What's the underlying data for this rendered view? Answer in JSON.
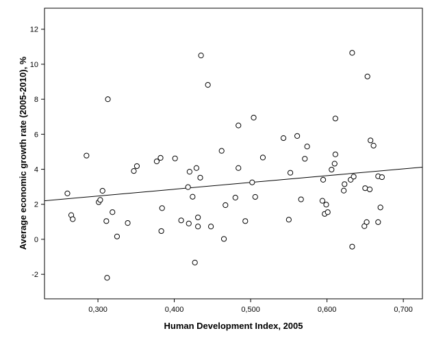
{
  "chart_data": {
    "type": "scatter",
    "title": "",
    "xlabel": "Human Development Index, 2005",
    "ylabel": "Average economic growth rate (2005-2010), %",
    "xlim": [
      0.23,
      0.725
    ],
    "ylim": [
      -3.4,
      13.2
    ],
    "xticks": [
      0.3,
      0.4,
      0.5,
      0.6,
      0.7
    ],
    "xtick_labels": [
      "0,300",
      "0,400",
      "0,500",
      "0,600",
      "0,700"
    ],
    "yticks": [
      -2,
      0,
      2,
      4,
      6,
      8,
      10,
      12
    ],
    "ytick_labels": [
      "-2",
      "0",
      "2",
      "4",
      "6",
      "8",
      "10",
      "12"
    ],
    "grid": false,
    "legend": "none",
    "marker": "open-circle",
    "colors": {
      "marker": "#000000",
      "line": "#000000",
      "plot_background": "#ffffff"
    },
    "fit_line": {
      "x": [
        0.23,
        0.725
      ],
      "y": [
        2.2,
        4.12
      ]
    },
    "points": [
      {
        "x": 0.26,
        "y": 2.62
      },
      {
        "x": 0.265,
        "y": 1.38
      },
      {
        "x": 0.267,
        "y": 1.15
      },
      {
        "x": 0.285,
        "y": 4.78
      },
      {
        "x": 0.301,
        "y": 2.12
      },
      {
        "x": 0.303,
        "y": 2.25
      },
      {
        "x": 0.306,
        "y": 2.77
      },
      {
        "x": 0.311,
        "y": 1.04
      },
      {
        "x": 0.312,
        "y": -2.2
      },
      {
        "x": 0.313,
        "y": 8.0
      },
      {
        "x": 0.319,
        "y": 1.55
      },
      {
        "x": 0.325,
        "y": 0.16
      },
      {
        "x": 0.339,
        "y": 0.93
      },
      {
        "x": 0.347,
        "y": 3.9
      },
      {
        "x": 0.351,
        "y": 4.18
      },
      {
        "x": 0.377,
        "y": 4.45
      },
      {
        "x": 0.382,
        "y": 4.65
      },
      {
        "x": 0.383,
        "y": 0.47
      },
      {
        "x": 0.384,
        "y": 1.78
      },
      {
        "x": 0.401,
        "y": 4.62
      },
      {
        "x": 0.409,
        "y": 1.08
      },
      {
        "x": 0.418,
        "y": 2.98
      },
      {
        "x": 0.419,
        "y": 0.9
      },
      {
        "x": 0.42,
        "y": 3.86
      },
      {
        "x": 0.424,
        "y": 2.43
      },
      {
        "x": 0.427,
        "y": -1.33
      },
      {
        "x": 0.429,
        "y": 4.07
      },
      {
        "x": 0.431,
        "y": 0.73
      },
      {
        "x": 0.431,
        "y": 1.25
      },
      {
        "x": 0.434,
        "y": 3.52
      },
      {
        "x": 0.435,
        "y": 10.5
      },
      {
        "x": 0.444,
        "y": 8.82
      },
      {
        "x": 0.448,
        "y": 0.73
      },
      {
        "x": 0.462,
        "y": 5.05
      },
      {
        "x": 0.465,
        "y": 0.02
      },
      {
        "x": 0.467,
        "y": 1.95
      },
      {
        "x": 0.48,
        "y": 2.38
      },
      {
        "x": 0.484,
        "y": 4.07
      },
      {
        "x": 0.484,
        "y": 6.5
      },
      {
        "x": 0.493,
        "y": 1.04
      },
      {
        "x": 0.502,
        "y": 3.25
      },
      {
        "x": 0.504,
        "y": 6.95
      },
      {
        "x": 0.506,
        "y": 2.42
      },
      {
        "x": 0.516,
        "y": 4.67
      },
      {
        "x": 0.543,
        "y": 5.78
      },
      {
        "x": 0.55,
        "y": 1.12
      },
      {
        "x": 0.552,
        "y": 3.8
      },
      {
        "x": 0.561,
        "y": 5.9
      },
      {
        "x": 0.566,
        "y": 2.28
      },
      {
        "x": 0.571,
        "y": 4.6
      },
      {
        "x": 0.574,
        "y": 5.3
      },
      {
        "x": 0.594,
        "y": 2.2
      },
      {
        "x": 0.595,
        "y": 3.4
      },
      {
        "x": 0.597,
        "y": 1.45
      },
      {
        "x": 0.599,
        "y": 1.98
      },
      {
        "x": 0.601,
        "y": 1.55
      },
      {
        "x": 0.606,
        "y": 3.98
      },
      {
        "x": 0.61,
        "y": 4.32
      },
      {
        "x": 0.611,
        "y": 4.85
      },
      {
        "x": 0.611,
        "y": 6.9
      },
      {
        "x": 0.622,
        "y": 2.78
      },
      {
        "x": 0.623,
        "y": 3.15
      },
      {
        "x": 0.631,
        "y": 3.4
      },
      {
        "x": 0.633,
        "y": 10.65
      },
      {
        "x": 0.633,
        "y": -0.42
      },
      {
        "x": 0.635,
        "y": 3.58
      },
      {
        "x": 0.649,
        "y": 0.75
      },
      {
        "x": 0.65,
        "y": 2.92
      },
      {
        "x": 0.652,
        "y": 0.98
      },
      {
        "x": 0.653,
        "y": 9.3
      },
      {
        "x": 0.656,
        "y": 2.85
      },
      {
        "x": 0.657,
        "y": 5.65
      },
      {
        "x": 0.661,
        "y": 5.35
      },
      {
        "x": 0.667,
        "y": 0.98
      },
      {
        "x": 0.667,
        "y": 3.6
      },
      {
        "x": 0.67,
        "y": 1.82
      },
      {
        "x": 0.672,
        "y": 3.55
      }
    ]
  }
}
